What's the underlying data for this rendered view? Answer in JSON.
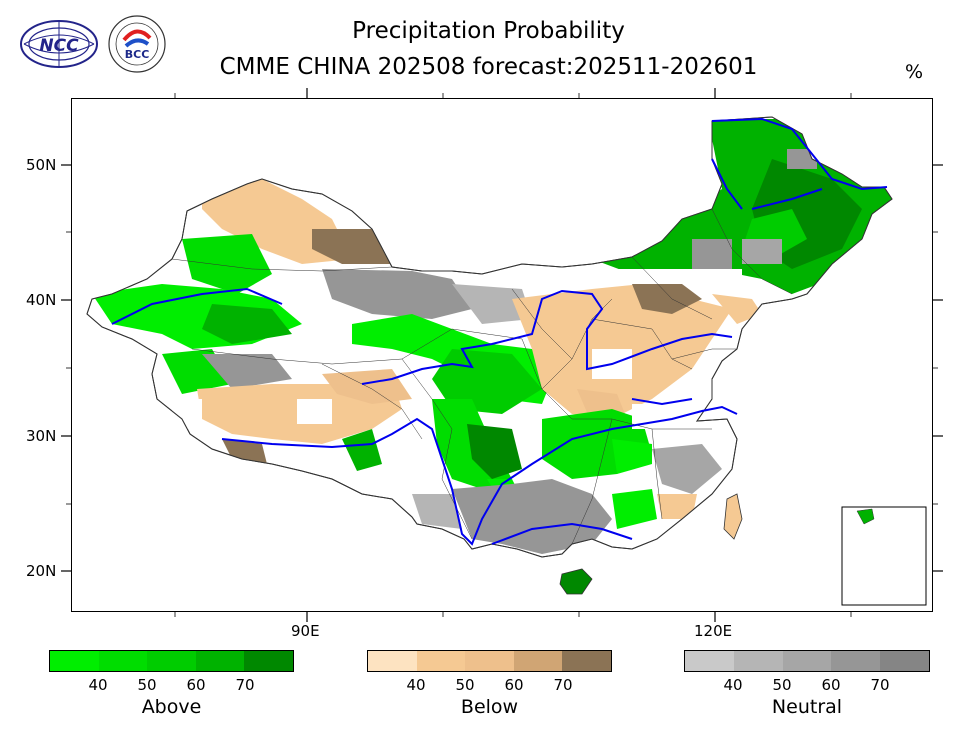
{
  "title_line1": "Precipitation Probability",
  "title_line2": "CMME CHINA 202508 forecast:202511-202601",
  "unit": "%",
  "logos": {
    "ncc": "NCC",
    "bcc": "BCC"
  },
  "axes": {
    "lat_labels": [
      "50N",
      "40N",
      "30N",
      "20N"
    ],
    "lon_labels": [
      "90E",
      "120E"
    ]
  },
  "legend": {
    "above": {
      "name": "Above",
      "ticks": [
        "40",
        "50",
        "60",
        "70"
      ],
      "colors": [
        "#00ee00",
        "#00dd00",
        "#00cc00",
        "#00b200",
        "#008800"
      ]
    },
    "below": {
      "name": "Below",
      "ticks": [
        "40",
        "50",
        "60",
        "70"
      ],
      "colors": [
        "#fde3c1",
        "#f5c993",
        "#eec08c",
        "#d0a574",
        "#8b7355"
      ]
    },
    "neutral": {
      "name": "Neutral",
      "ticks": [
        "40",
        "50",
        "60",
        "70"
      ],
      "colors": [
        "#c9c9c9",
        "#b5b5b5",
        "#a6a6a6",
        "#969696",
        "#858585"
      ]
    }
  }
}
